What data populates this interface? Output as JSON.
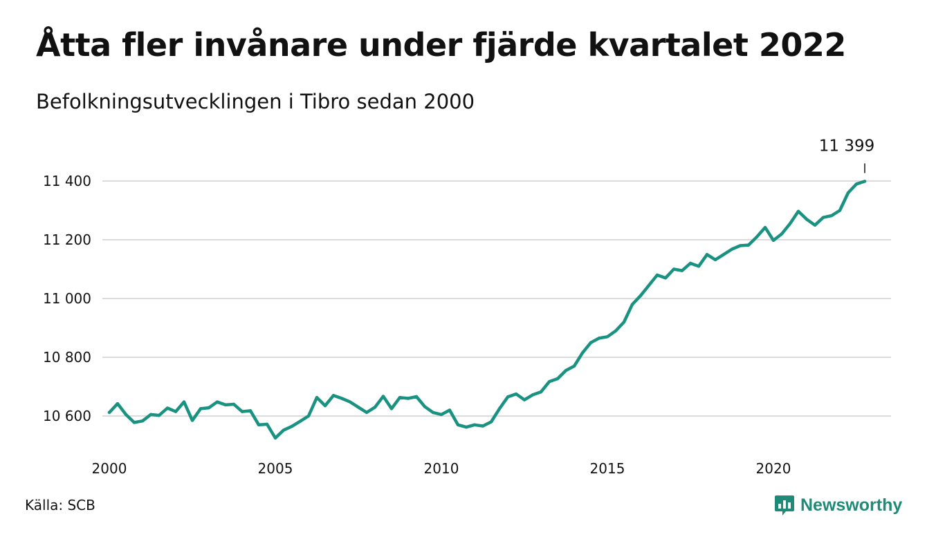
{
  "title": "Åtta fler invånare under fjärde kvartalet 2022",
  "subtitle": "Befolkningsutvecklingen i Tibro sedan 2000",
  "source": "Källa: SCB",
  "brand": {
    "name": "Newsworthy",
    "icon": "newsworthy-logo-icon",
    "color": "#1f8a78"
  },
  "chart_data": {
    "type": "line",
    "title": "Åtta fler invånare under fjärde kvartalet 2022",
    "subtitle": "Befolkningsutvecklingen i Tibro sedan 2000",
    "xlabel": "",
    "ylabel": "",
    "grid": true,
    "line_color": "#1a9281",
    "x_ticks": [
      {
        "value": 2000,
        "label": "2000"
      },
      {
        "value": 2005,
        "label": "2005"
      },
      {
        "value": 2010,
        "label": "2010"
      },
      {
        "value": 2015,
        "label": "2015"
      },
      {
        "value": 2020,
        "label": "2020"
      }
    ],
    "y_ticks": [
      {
        "value": 10600,
        "label": "10 600"
      },
      {
        "value": 10800,
        "label": "10 800"
      },
      {
        "value": 11000,
        "label": "11 000"
      },
      {
        "value": 11200,
        "label": "11 200"
      },
      {
        "value": 11400,
        "label": "11 400"
      }
    ],
    "xlim": [
      2000,
      2023.25
    ],
    "ylim": [
      10500,
      11440
    ],
    "annotation": {
      "label": "11 399",
      "value": 11399,
      "x": 2022.75
    },
    "series": [
      {
        "values": [
          [
            2000.0,
            10612
          ],
          [
            2000.25,
            10642
          ],
          [
            2000.5,
            10605
          ],
          [
            2000.75,
            10578
          ],
          [
            2001.0,
            10583
          ],
          [
            2001.25,
            10605
          ],
          [
            2001.5,
            10602
          ],
          [
            2001.75,
            10627
          ],
          [
            2002.0,
            10615
          ],
          [
            2002.25,
            10648
          ],
          [
            2002.5,
            10585
          ],
          [
            2002.75,
            10625
          ],
          [
            2003.0,
            10628
          ],
          [
            2003.25,
            10648
          ],
          [
            2003.5,
            10638
          ],
          [
            2003.75,
            10640
          ],
          [
            2004.0,
            10615
          ],
          [
            2004.25,
            10618
          ],
          [
            2004.5,
            10570
          ],
          [
            2004.75,
            10572
          ],
          [
            2005.0,
            10525
          ],
          [
            2005.25,
            10552
          ],
          [
            2005.5,
            10565
          ],
          [
            2005.75,
            10582
          ],
          [
            2006.0,
            10600
          ],
          [
            2006.25,
            10663
          ],
          [
            2006.5,
            10635
          ],
          [
            2006.75,
            10670
          ],
          [
            2007.0,
            10660
          ],
          [
            2007.25,
            10648
          ],
          [
            2007.5,
            10630
          ],
          [
            2007.75,
            10612
          ],
          [
            2008.0,
            10630
          ],
          [
            2008.25,
            10667
          ],
          [
            2008.5,
            10625
          ],
          [
            2008.75,
            10663
          ],
          [
            2009.0,
            10660
          ],
          [
            2009.25,
            10666
          ],
          [
            2009.5,
            10632
          ],
          [
            2009.75,
            10612
          ],
          [
            2010.0,
            10605
          ],
          [
            2010.25,
            10620
          ],
          [
            2010.5,
            10570
          ],
          [
            2010.75,
            10562
          ],
          [
            2011.0,
            10570
          ],
          [
            2011.25,
            10566
          ],
          [
            2011.5,
            10580
          ],
          [
            2011.75,
            10625
          ],
          [
            2012.0,
            10665
          ],
          [
            2012.25,
            10675
          ],
          [
            2012.5,
            10655
          ],
          [
            2012.75,
            10672
          ],
          [
            2013.0,
            10682
          ],
          [
            2013.25,
            10717
          ],
          [
            2013.5,
            10727
          ],
          [
            2013.75,
            10755
          ],
          [
            2014.0,
            10770
          ],
          [
            2014.25,
            10815
          ],
          [
            2014.5,
            10850
          ],
          [
            2014.75,
            10865
          ],
          [
            2015.0,
            10870
          ],
          [
            2015.25,
            10890
          ],
          [
            2015.5,
            10920
          ],
          [
            2015.75,
            10980
          ],
          [
            2016.0,
            11010
          ],
          [
            2016.25,
            11045
          ],
          [
            2016.5,
            11080
          ],
          [
            2016.75,
            11070
          ],
          [
            2017.0,
            11100
          ],
          [
            2017.25,
            11095
          ],
          [
            2017.5,
            11120
          ],
          [
            2017.75,
            11110
          ],
          [
            2018.0,
            11150
          ],
          [
            2018.25,
            11132
          ],
          [
            2018.5,
            11150
          ],
          [
            2018.75,
            11168
          ],
          [
            2019.0,
            11180
          ],
          [
            2019.25,
            11182
          ],
          [
            2019.5,
            11210
          ],
          [
            2019.75,
            11242
          ],
          [
            2020.0,
            11198
          ],
          [
            2020.25,
            11220
          ],
          [
            2020.5,
            11255
          ],
          [
            2020.75,
            11297
          ],
          [
            2021.0,
            11270
          ],
          [
            2021.25,
            11250
          ],
          [
            2021.5,
            11276
          ],
          [
            2021.75,
            11282
          ],
          [
            2022.0,
            11300
          ],
          [
            2022.25,
            11360
          ],
          [
            2022.5,
            11390
          ],
          [
            2022.75,
            11399
          ]
        ]
      }
    ]
  }
}
